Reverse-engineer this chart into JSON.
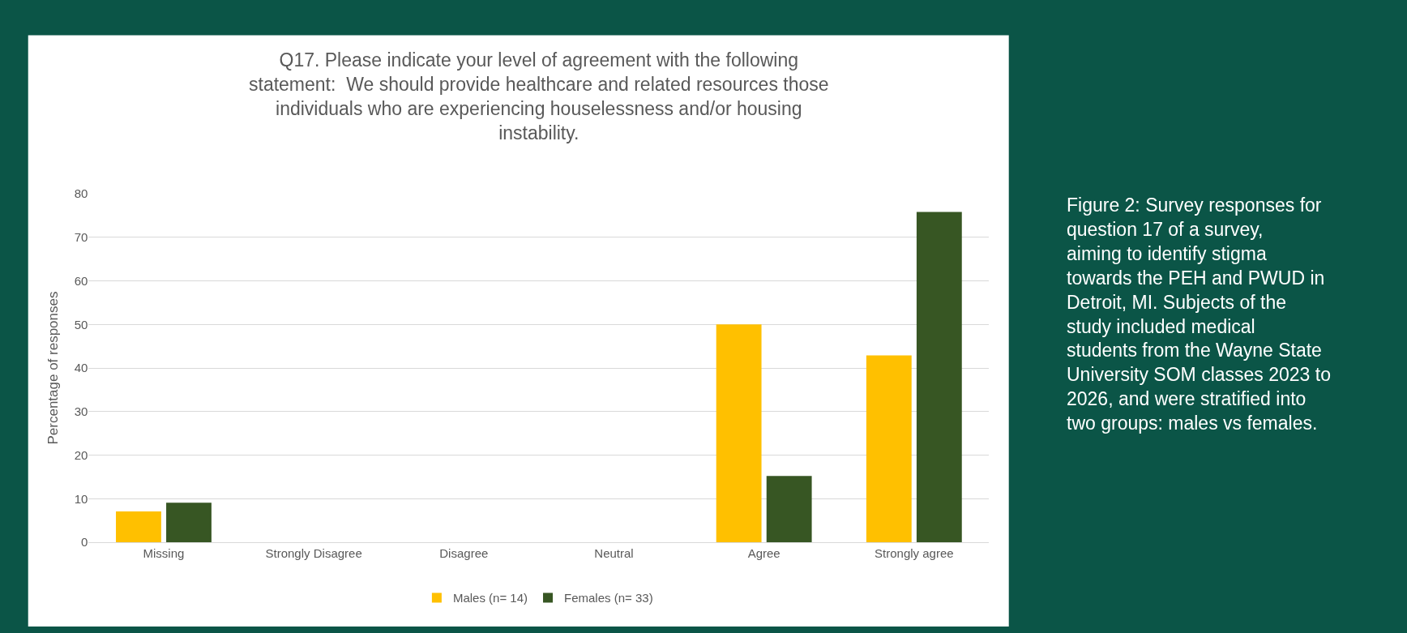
{
  "chart_data": {
    "type": "bar",
    "title": "Q17. Please indicate your level of agreement with the following statement:  We should provide healthcare and related resources those individuals who are experiencing houselessness and/or housing instability.",
    "ylabel": "Percentage of responses",
    "categories": [
      "Missing",
      "Strongly Disagree",
      "Disagree",
      "Neutral",
      "Agree",
      "Strongly agree"
    ],
    "series": [
      {
        "name": "Males (n= 14)",
        "color": "#ffc000",
        "values": [
          7.1,
          0,
          0,
          0,
          50,
          42.9
        ]
      },
      {
        "name": "Females (n= 33)",
        "color": "#375623",
        "values": [
          9.1,
          0,
          0,
          0,
          15.2,
          75.8
        ]
      }
    ],
    "ylim": [
      0,
      80
    ],
    "yticks": [
      0,
      10,
      20,
      30,
      40,
      50,
      60,
      70,
      80
    ],
    "grid": "y",
    "legend": "bottom",
    "annotations": [
      "Figure 2: Survey responses for question 17 of a survey, aiming to identify stigma towards the PEH and PWUD in Detroit, MI. Subjects of the study included medical students from the Wayne State University SOM classes 2023 to 2026, and were stratified into two groups: males vs females."
    ]
  }
}
